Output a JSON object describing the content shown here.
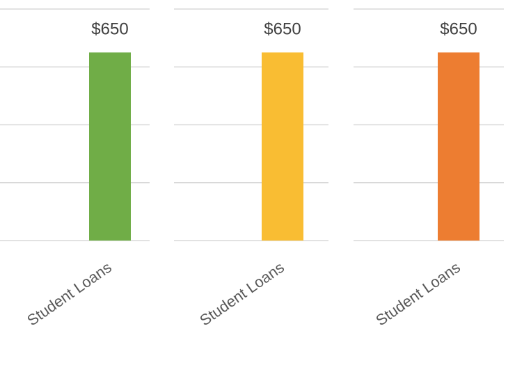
{
  "chart_data": [
    {
      "type": "bar",
      "categories": [
        "Student Loans"
      ],
      "values": [
        650
      ],
      "data_labels": [
        "$650"
      ],
      "bar_color": "#70ad47",
      "ylim": [
        0,
        800
      ],
      "grid": true
    },
    {
      "type": "bar",
      "categories": [
        "Student Loans"
      ],
      "values": [
        650
      ],
      "data_labels": [
        "$650"
      ],
      "bar_color": "#f9bd33",
      "ylim": [
        0,
        800
      ],
      "grid": true
    },
    {
      "type": "bar",
      "categories": [
        "Student Loans"
      ],
      "values": [
        650
      ],
      "data_labels": [
        "$650"
      ],
      "bar_color": "#ed7d31",
      "ylim": [
        0,
        800
      ],
      "grid": true
    }
  ]
}
